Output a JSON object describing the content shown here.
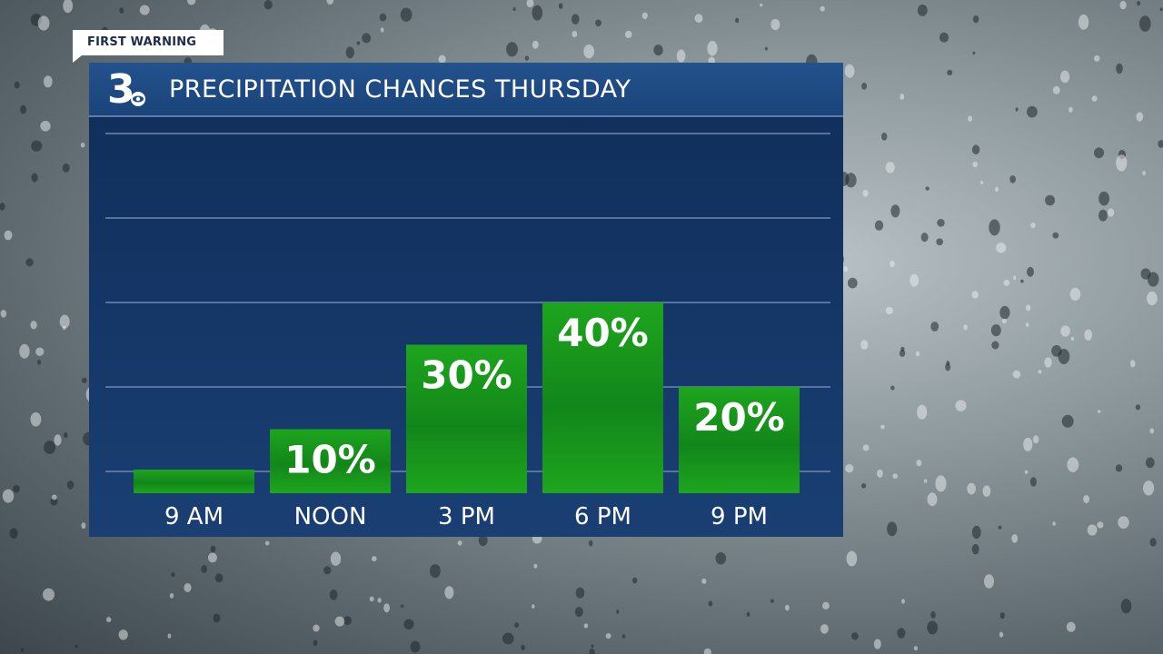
{
  "banner": {
    "label": "FIRST WARNING"
  },
  "header": {
    "title": "PRECIPITATION CHANCES THURSDAY",
    "logo_number": "3"
  },
  "colors": {
    "bar": "#1ea51e",
    "bar_dark": "#12861a",
    "panel": "#163a6c",
    "header": "#1f4c85",
    "grid": "#6f87ad"
  },
  "chart_data": {
    "type": "bar",
    "title": "PRECIPITATION CHANCES THURSDAY",
    "categories": [
      "9 AM",
      "NOON",
      "3 PM",
      "6 PM",
      "9 PM"
    ],
    "values": [
      0,
      10,
      30,
      40,
      20
    ],
    "labels": [
      "",
      "10%",
      "30%",
      "40%",
      "20%"
    ],
    "ylim": [
      -5,
      85
    ],
    "grid": true,
    "gridlines": [
      0,
      20,
      40,
      60,
      80
    ]
  }
}
